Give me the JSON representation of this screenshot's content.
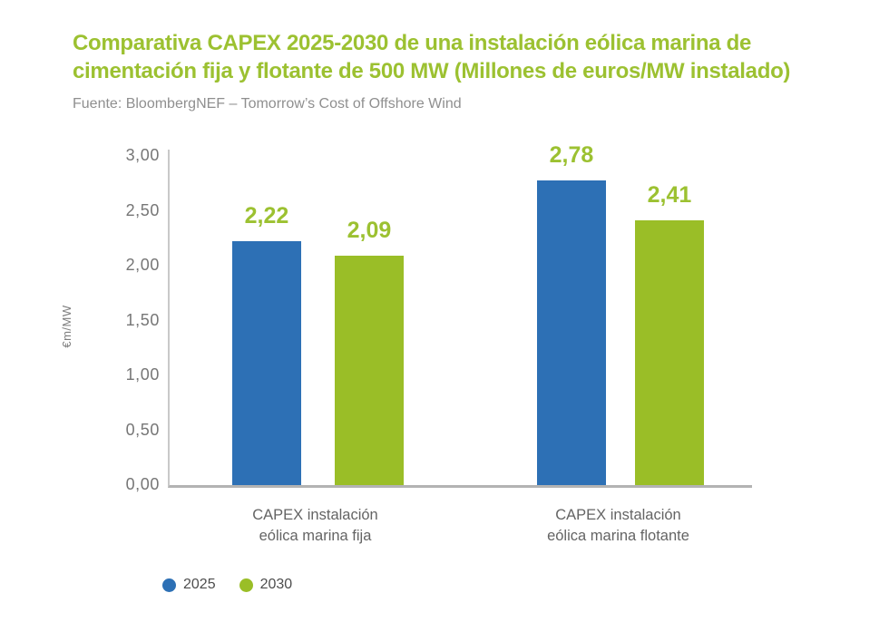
{
  "header": {
    "title": "Comparativa CAPEX 2025-2030 de una instalación eólica marina de cimentación fija y flotante de 500 MW (Millones de euros/MW instalado)",
    "source": "Fuente: BloombergNEF – Tomorrow’s Cost of Offshore Wind"
  },
  "colors": {
    "title_green": "#9cc131",
    "data_label_green": "#9cc131",
    "bar_blue": "#2d70b5",
    "bar_green": "#9abe27",
    "axis_line": "#b3b3b3",
    "tick_text": "#767676",
    "legend_text": "#4d4d4d"
  },
  "chart_data": {
    "type": "bar",
    "title": "Comparativa CAPEX 2025-2030 de una instalación eólica marina de cimentación fija y flotante de 500 MW (Millones de euros/MW instalado)",
    "subtitle": "Fuente: BloombergNEF – Tomorrow’s Cost of Offshore Wind",
    "categories": [
      "CAPEX instalación eólica marina fija",
      "CAPEX instalación eólica marina flotante"
    ],
    "series": [
      {
        "name": "2025",
        "color": "#2d70b5",
        "values": [
          2.22,
          2.78
        ],
        "value_labels": [
          "2,22",
          "2,78"
        ]
      },
      {
        "name": "2030",
        "color": "#9abe27",
        "values": [
          2.09,
          2.41
        ],
        "value_labels": [
          "2,09",
          "2,41"
        ]
      }
    ],
    "xlabel": "",
    "ylabel": "€m/MW",
    "ylim": [
      0,
      3
    ],
    "yticks": [
      {
        "v": 3.0,
        "label": "3,00"
      },
      {
        "v": 2.5,
        "label": "2,50"
      },
      {
        "v": 2.0,
        "label": "2,00"
      },
      {
        "v": 1.5,
        "label": "1,50"
      },
      {
        "v": 1.0,
        "label": "1,00"
      },
      {
        "v": 0.5,
        "label": "0,50"
      },
      {
        "v": 0.0,
        "label": "0,00"
      }
    ],
    "grid": false,
    "legend_position": "bottom-left",
    "decimal_separator": ","
  }
}
